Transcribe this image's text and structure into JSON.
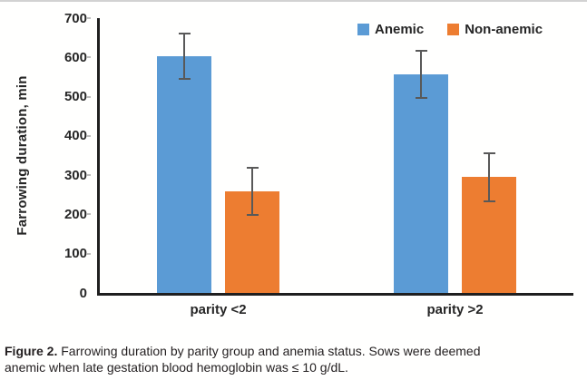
{
  "figure": {
    "caption_label": "Figure 2.",
    "caption_text": " Farrowing duration by parity group and anemia status. Sows were deemed anemic when late gestation blood hemoglobin was ≤ 10 g/dL."
  },
  "chart_data": {
    "type": "bar",
    "title": "",
    "xlabel": "",
    "ylabel": "Farrowing duration, min",
    "ylim": [
      0,
      700
    ],
    "yticks": [
      0,
      100,
      200,
      300,
      400,
      500,
      600,
      700
    ],
    "categories": [
      "parity <2",
      "parity >2"
    ],
    "series": [
      {
        "name": "Anemic",
        "color": "#5B9BD5",
        "values": [
          603,
          557
        ],
        "errors": [
          57,
          60
        ]
      },
      {
        "name": "Non-anemic",
        "color": "#ED7D31",
        "values": [
          258,
          295
        ],
        "errors": [
          60,
          61
        ]
      }
    ],
    "grid": false,
    "legend_position": "top-right",
    "error_bar_color": "#595959",
    "axis_color": "#1f1f1f"
  }
}
